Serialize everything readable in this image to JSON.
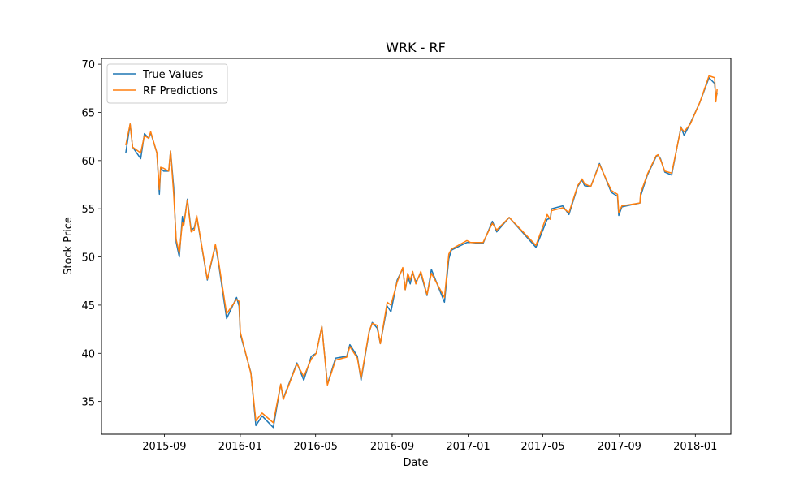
{
  "chart_data": {
    "type": "line",
    "title": "WRK - RF",
    "xlabel": "Date",
    "ylabel": "Stock Price",
    "x_tick_labels": [
      "2015-09",
      "2016-01",
      "2016-05",
      "2016-09",
      "2017-01",
      "2017-05",
      "2017-09",
      "2018-01"
    ],
    "y_ticks": [
      35,
      40,
      45,
      50,
      55,
      60,
      65,
      70
    ],
    "xlim": [
      "2015-05-23",
      "2018-02-27"
    ],
    "ylim": [
      31.6,
      70.6
    ],
    "grid": false,
    "legend_position": "top-left",
    "series": [
      {
        "name": "True Values",
        "color": "#1f77b4",
        "points": [
          [
            "2015-07-01",
            60.8
          ],
          [
            "2015-07-08",
            63.8
          ],
          [
            "2015-07-12",
            61.4
          ],
          [
            "2015-07-25",
            60.2
          ],
          [
            "2015-07-31",
            62.8
          ],
          [
            "2015-08-07",
            62.3
          ],
          [
            "2015-08-10",
            62.9
          ],
          [
            "2015-08-20",
            60.8
          ],
          [
            "2015-08-24",
            56.5
          ],
          [
            "2015-08-26",
            59.2
          ],
          [
            "2015-08-31",
            58.9
          ],
          [
            "2015-09-08",
            58.9
          ],
          [
            "2015-09-11",
            61.0
          ],
          [
            "2015-09-16",
            57.2
          ],
          [
            "2015-09-20",
            51.5
          ],
          [
            "2015-09-25",
            50.0
          ],
          [
            "2015-09-30",
            54.2
          ],
          [
            "2015-10-02",
            53.3
          ],
          [
            "2015-10-08",
            56.0
          ],
          [
            "2015-10-14",
            52.8
          ],
          [
            "2015-10-19",
            53.0
          ],
          [
            "2015-10-23",
            54.2
          ],
          [
            "2015-11-09",
            47.6
          ],
          [
            "2015-11-22",
            51.2
          ],
          [
            "2015-11-26",
            49.8
          ],
          [
            "2015-12-10",
            43.6
          ],
          [
            "2015-12-26",
            45.8
          ],
          [
            "2015-12-30",
            44.9
          ],
          [
            "2016-01-01",
            42.0
          ],
          [
            "2016-01-18",
            38.0
          ],
          [
            "2016-01-26",
            32.5
          ],
          [
            "2016-02-05",
            33.5
          ],
          [
            "2016-02-23",
            32.3
          ],
          [
            "2016-03-06",
            36.8
          ],
          [
            "2016-03-10",
            35.3
          ],
          [
            "2016-04-01",
            39.0
          ],
          [
            "2016-04-12",
            37.2
          ],
          [
            "2016-04-24",
            39.7
          ],
          [
            "2016-05-02",
            40.0
          ],
          [
            "2016-05-11",
            42.8
          ],
          [
            "2016-05-20",
            36.8
          ],
          [
            "2016-06-02",
            39.5
          ],
          [
            "2016-06-20",
            39.7
          ],
          [
            "2016-06-25",
            40.9
          ],
          [
            "2016-07-07",
            39.7
          ],
          [
            "2016-07-13",
            37.2
          ],
          [
            "2016-07-26",
            42.2
          ],
          [
            "2016-07-31",
            43.2
          ],
          [
            "2016-08-08",
            42.6
          ],
          [
            "2016-08-13",
            41.0
          ],
          [
            "2016-08-24",
            44.9
          ],
          [
            "2016-08-30",
            44.3
          ],
          [
            "2016-09-09",
            47.6
          ],
          [
            "2016-09-18",
            48.8
          ],
          [
            "2016-09-22",
            46.6
          ],
          [
            "2016-09-26",
            48.0
          ],
          [
            "2016-09-30",
            47.2
          ],
          [
            "2016-10-04",
            48.4
          ],
          [
            "2016-10-09",
            47.4
          ],
          [
            "2016-10-17",
            48.3
          ],
          [
            "2016-10-27",
            46.0
          ],
          [
            "2016-11-03",
            48.7
          ],
          [
            "2016-11-24",
            45.3
          ],
          [
            "2016-12-01",
            49.8
          ],
          [
            "2016-12-05",
            50.7
          ],
          [
            "2016-12-30",
            51.5
          ],
          [
            "2017-01-05",
            51.5
          ],
          [
            "2017-01-25",
            51.4
          ],
          [
            "2017-02-09",
            53.7
          ],
          [
            "2017-02-16",
            52.6
          ],
          [
            "2017-03-08",
            54.1
          ],
          [
            "2017-04-20",
            51.0
          ],
          [
            "2017-05-08",
            53.9
          ],
          [
            "2017-05-13",
            54.0
          ],
          [
            "2017-05-15",
            55.0
          ],
          [
            "2017-06-02",
            55.3
          ],
          [
            "2017-06-12",
            54.4
          ],
          [
            "2017-06-26",
            57.3
          ],
          [
            "2017-07-03",
            58.0
          ],
          [
            "2017-07-07",
            57.4
          ],
          [
            "2017-07-17",
            57.3
          ],
          [
            "2017-07-31",
            59.7
          ],
          [
            "2017-08-19",
            56.7
          ],
          [
            "2017-08-29",
            56.3
          ],
          [
            "2017-08-31",
            54.3
          ],
          [
            "2017-09-05",
            55.2
          ],
          [
            "2017-10-04",
            55.6
          ],
          [
            "2017-10-05",
            56.3
          ],
          [
            "2017-10-16",
            58.5
          ],
          [
            "2017-10-30",
            60.4
          ],
          [
            "2017-11-02",
            60.6
          ],
          [
            "2017-11-06",
            60.2
          ],
          [
            "2017-11-13",
            58.8
          ],
          [
            "2017-11-24",
            58.5
          ],
          [
            "2017-12-09",
            63.5
          ],
          [
            "2017-12-14",
            62.6
          ],
          [
            "2017-12-24",
            63.9
          ],
          [
            "2018-01-08",
            66.0
          ],
          [
            "2018-01-23",
            68.6
          ],
          [
            "2018-02-01",
            68.0
          ],
          [
            "2018-02-03",
            66.5
          ],
          [
            "2018-02-05",
            67.0
          ]
        ]
      },
      {
        "name": "RF Predictions",
        "color": "#ff7f0e",
        "points": [
          [
            "2015-07-01",
            61.6
          ],
          [
            "2015-07-08",
            63.8
          ],
          [
            "2015-07-12",
            61.4
          ],
          [
            "2015-07-25",
            60.8
          ],
          [
            "2015-07-31",
            62.6
          ],
          [
            "2015-08-07",
            62.3
          ],
          [
            "2015-08-10",
            63.0
          ],
          [
            "2015-08-20",
            60.8
          ],
          [
            "2015-08-24",
            57.0
          ],
          [
            "2015-08-26",
            59.3
          ],
          [
            "2015-08-31",
            59.2
          ],
          [
            "2015-09-08",
            58.9
          ],
          [
            "2015-09-11",
            61.0
          ],
          [
            "2015-09-16",
            56.5
          ],
          [
            "2015-09-20",
            51.8
          ],
          [
            "2015-09-25",
            50.4
          ],
          [
            "2015-09-30",
            53.6
          ],
          [
            "2015-10-02",
            53.2
          ],
          [
            "2015-10-08",
            55.9
          ],
          [
            "2015-10-14",
            52.6
          ],
          [
            "2015-10-19",
            52.8
          ],
          [
            "2015-10-23",
            54.3
          ],
          [
            "2015-11-09",
            47.7
          ],
          [
            "2015-11-22",
            51.3
          ],
          [
            "2015-11-26",
            50.0
          ],
          [
            "2015-12-10",
            44.1
          ],
          [
            "2015-12-26",
            45.6
          ],
          [
            "2015-12-30",
            45.4
          ],
          [
            "2016-01-01",
            42.2
          ],
          [
            "2016-01-18",
            37.9
          ],
          [
            "2016-01-26",
            33.0
          ],
          [
            "2016-02-05",
            33.8
          ],
          [
            "2016-02-23",
            32.8
          ],
          [
            "2016-03-06",
            36.8
          ],
          [
            "2016-03-10",
            35.2
          ],
          [
            "2016-04-01",
            38.9
          ],
          [
            "2016-04-12",
            37.6
          ],
          [
            "2016-04-24",
            39.4
          ],
          [
            "2016-05-02",
            40.0
          ],
          [
            "2016-05-11",
            42.8
          ],
          [
            "2016-05-20",
            36.7
          ],
          [
            "2016-06-02",
            39.3
          ],
          [
            "2016-06-20",
            39.6
          ],
          [
            "2016-06-25",
            40.7
          ],
          [
            "2016-07-07",
            39.5
          ],
          [
            "2016-07-13",
            37.4
          ],
          [
            "2016-07-26",
            42.3
          ],
          [
            "2016-07-31",
            43.1
          ],
          [
            "2016-08-08",
            42.9
          ],
          [
            "2016-08-13",
            41.0
          ],
          [
            "2016-08-24",
            45.3
          ],
          [
            "2016-08-30",
            45.0
          ],
          [
            "2016-09-09",
            47.4
          ],
          [
            "2016-09-18",
            48.9
          ],
          [
            "2016-09-22",
            46.6
          ],
          [
            "2016-09-26",
            48.3
          ],
          [
            "2016-09-30",
            47.6
          ],
          [
            "2016-10-04",
            48.5
          ],
          [
            "2016-10-09",
            47.2
          ],
          [
            "2016-10-17",
            48.5
          ],
          [
            "2016-10-27",
            46.1
          ],
          [
            "2016-11-03",
            48.3
          ],
          [
            "2016-11-24",
            45.8
          ],
          [
            "2016-12-01",
            50.3
          ],
          [
            "2016-12-05",
            50.8
          ],
          [
            "2016-12-30",
            51.7
          ],
          [
            "2017-01-05",
            51.5
          ],
          [
            "2017-01-25",
            51.5
          ],
          [
            "2017-02-09",
            53.5
          ],
          [
            "2017-02-16",
            52.8
          ],
          [
            "2017-03-08",
            54.1
          ],
          [
            "2017-04-20",
            51.2
          ],
          [
            "2017-05-08",
            54.4
          ],
          [
            "2017-05-13",
            53.9
          ],
          [
            "2017-05-15",
            54.8
          ],
          [
            "2017-06-02",
            55.1
          ],
          [
            "2017-06-12",
            54.6
          ],
          [
            "2017-06-26",
            57.4
          ],
          [
            "2017-07-03",
            58.1
          ],
          [
            "2017-07-07",
            57.6
          ],
          [
            "2017-07-17",
            57.3
          ],
          [
            "2017-07-31",
            59.6
          ],
          [
            "2017-08-19",
            56.9
          ],
          [
            "2017-08-29",
            56.5
          ],
          [
            "2017-08-31",
            54.6
          ],
          [
            "2017-09-05",
            55.3
          ],
          [
            "2017-10-04",
            55.6
          ],
          [
            "2017-10-05",
            56.6
          ],
          [
            "2017-10-16",
            58.6
          ],
          [
            "2017-10-30",
            60.5
          ],
          [
            "2017-11-02",
            60.6
          ],
          [
            "2017-11-06",
            60.1
          ],
          [
            "2017-11-13",
            58.9
          ],
          [
            "2017-11-24",
            58.7
          ],
          [
            "2017-12-09",
            63.4
          ],
          [
            "2017-12-14",
            63.0
          ],
          [
            "2017-12-24",
            63.8
          ],
          [
            "2018-01-08",
            66.0
          ],
          [
            "2018-01-23",
            68.8
          ],
          [
            "2018-02-01",
            68.6
          ],
          [
            "2018-02-03",
            66.1
          ],
          [
            "2018-02-05",
            67.4
          ]
        ]
      }
    ]
  }
}
